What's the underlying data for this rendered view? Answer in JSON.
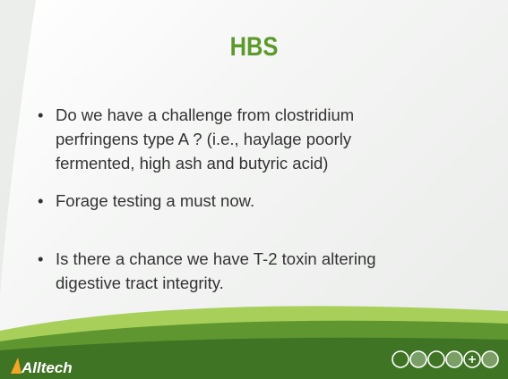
{
  "title": "HBS",
  "bullets": [
    {
      "lines": [
        "Do we have a challenge from clostridium",
        "perfringens type A ? (i.e., haylage poorly",
        "fermented, high ash and butyric acid)"
      ]
    },
    {
      "lines": [
        "Forage testing a must now."
      ]
    },
    {
      "lines": [
        "Is there a chance we have T-2 toxin altering",
        "digestive tract integrity."
      ]
    }
  ],
  "logo": "Alltech"
}
